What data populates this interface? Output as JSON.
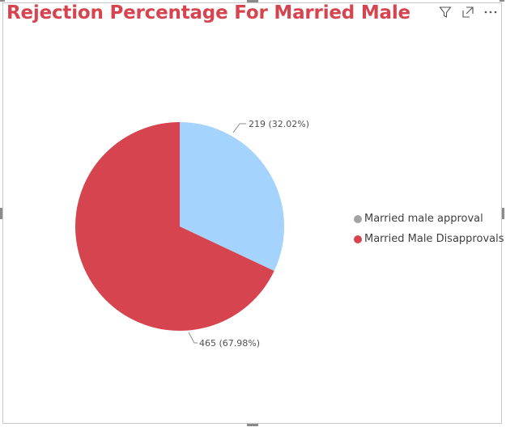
{
  "title": "Rejection Percentage For Married Male",
  "icons": {
    "filter": "filter-icon",
    "focus": "focus-mode-icon",
    "more": "more-options-icon"
  },
  "colors": {
    "title": "#d6444f",
    "approval": "#a4d3fd",
    "disapproval": "#d6444f"
  },
  "legend": {
    "items": [
      {
        "label": "Married male approval",
        "color": "#a3a3a3"
      },
      {
        "label": "Married Male Disapprovals",
        "color": "#d6444f"
      }
    ]
  },
  "chart_data": {
    "type": "pie",
    "title": "Rejection Percentage For Married Male",
    "slices": [
      {
        "name": "Married male approval",
        "value": 219,
        "percent": 32.02,
        "label": "219 (32.02%)",
        "color": "#a4d3fd"
      },
      {
        "name": "Married Male Disapprovals",
        "value": 465,
        "percent": 67.98,
        "label": "465 (67.98%)",
        "color": "#d6444f"
      }
    ],
    "legend_position": "right"
  }
}
